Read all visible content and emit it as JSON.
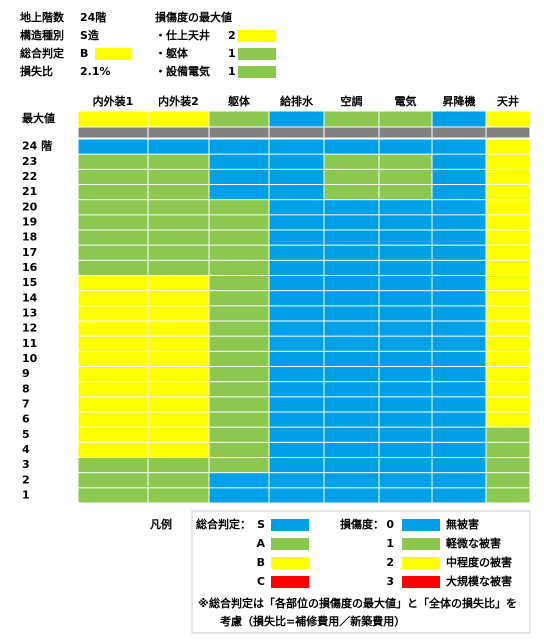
{
  "summary": {
    "rows": [
      {
        "label": "地上階数",
        "value": "24階"
      },
      {
        "label": "構造種別",
        "value": "S造"
      },
      {
        "label": "総合判定",
        "value": "B"
      },
      {
        "label": "損失比",
        "value": "2.1%"
      }
    ],
    "max_title": "損傷度の最大値",
    "max_items": [
      {
        "label": "・仕上天井",
        "value": 2
      },
      {
        "label": "・躯体",
        "value": 1
      },
      {
        "label": "・設備電気",
        "value": 1
      }
    ]
  },
  "grid": {
    "columns": [
      "内外装1",
      "内外装2",
      "躯体",
      "給排水",
      "空調",
      "電気",
      "昇降機",
      "天井"
    ],
    "max_label": "最大値",
    "max_values": [
      2,
      2,
      1,
      0,
      1,
      1,
      0,
      2
    ],
    "floors": [
      {
        "label": "24 階",
        "values": [
          0,
          0,
          0,
          0,
          0,
          0,
          0,
          2
        ]
      },
      {
        "label": "23",
        "values": [
          1,
          1,
          0,
          0,
          1,
          1,
          0,
          2
        ]
      },
      {
        "label": "22",
        "values": [
          1,
          1,
          0,
          0,
          1,
          1,
          0,
          2
        ]
      },
      {
        "label": "21",
        "values": [
          1,
          1,
          0,
          0,
          1,
          1,
          0,
          2
        ]
      },
      {
        "label": "20",
        "values": [
          1,
          1,
          1,
          0,
          0,
          0,
          0,
          2
        ]
      },
      {
        "label": "19",
        "values": [
          1,
          1,
          1,
          0,
          0,
          0,
          0,
          2
        ]
      },
      {
        "label": "18",
        "values": [
          1,
          1,
          1,
          0,
          0,
          0,
          0,
          2
        ]
      },
      {
        "label": "17",
        "values": [
          1,
          1,
          1,
          0,
          0,
          0,
          0,
          2
        ]
      },
      {
        "label": "16",
        "values": [
          1,
          1,
          1,
          0,
          0,
          0,
          0,
          2
        ]
      },
      {
        "label": "15",
        "values": [
          2,
          2,
          1,
          0,
          0,
          0,
          0,
          2
        ]
      },
      {
        "label": "14",
        "values": [
          2,
          2,
          1,
          0,
          0,
          0,
          0,
          2
        ]
      },
      {
        "label": "13",
        "values": [
          2,
          2,
          1,
          0,
          0,
          0,
          0,
          2
        ]
      },
      {
        "label": "12",
        "values": [
          2,
          2,
          1,
          0,
          0,
          0,
          0,
          2
        ]
      },
      {
        "label": "11",
        "values": [
          2,
          2,
          1,
          0,
          0,
          0,
          0,
          2
        ]
      },
      {
        "label": "10",
        "values": [
          2,
          2,
          1,
          0,
          0,
          0,
          0,
          2
        ]
      },
      {
        "label": "9",
        "values": [
          2,
          2,
          1,
          0,
          0,
          0,
          0,
          2
        ]
      },
      {
        "label": "8",
        "values": [
          2,
          2,
          1,
          0,
          0,
          0,
          0,
          2
        ]
      },
      {
        "label": "7",
        "values": [
          2,
          2,
          1,
          0,
          0,
          0,
          0,
          2
        ]
      },
      {
        "label": "6",
        "values": [
          2,
          2,
          1,
          0,
          0,
          0,
          0,
          2
        ]
      },
      {
        "label": "5",
        "values": [
          2,
          2,
          1,
          0,
          0,
          0,
          0,
          1
        ]
      },
      {
        "label": "4",
        "values": [
          2,
          2,
          1,
          0,
          0,
          0,
          0,
          1
        ]
      },
      {
        "label": "3",
        "values": [
          1,
          1,
          1,
          0,
          0,
          0,
          0,
          1
        ]
      },
      {
        "label": "2",
        "values": [
          1,
          1,
          0,
          0,
          0,
          0,
          0,
          1
        ]
      },
      {
        "label": "1",
        "values": [
          1,
          1,
          0,
          0,
          0,
          0,
          0,
          1
        ]
      }
    ]
  },
  "legend": {
    "title": "凡例",
    "judgment_title": "総合判定：",
    "judgment": [
      {
        "grade": "S",
        "color": "#00a0e9"
      },
      {
        "grade": "A",
        "color": "#8cc850"
      },
      {
        "grade": "B",
        "color": "#ffff00"
      },
      {
        "grade": "C",
        "color": "#ff0000"
      }
    ],
    "damage_title": "損傷度：",
    "damage": [
      {
        "level": 0,
        "label": "無被害",
        "color": "#00a0e9"
      },
      {
        "level": 1,
        "label": "軽微な被害",
        "color": "#8cc850"
      },
      {
        "level": 2,
        "label": "中程度の被害",
        "color": "#ffff00"
      },
      {
        "level": 3,
        "label": "大規模な被害",
        "color": "#ff0000"
      }
    ],
    "note_mark": "※",
    "note": [
      "総合判定は「各部位の損傷度の最大値」と「全体の損失比」を",
      "考慮（損失比=補修費用／新築費用）"
    ]
  }
}
